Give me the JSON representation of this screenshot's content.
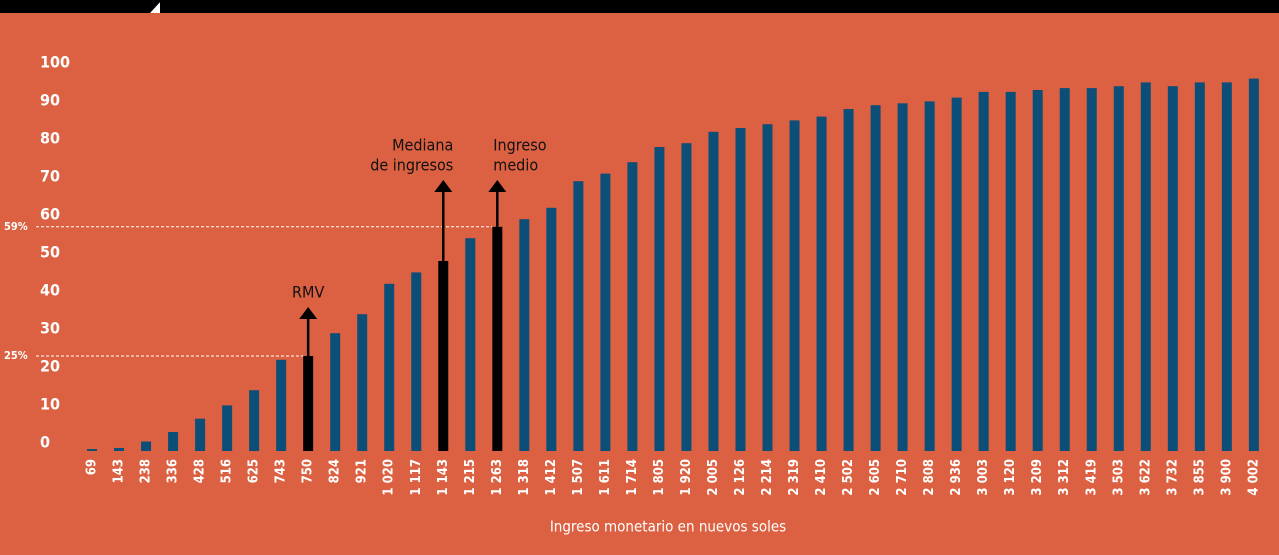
{
  "chart_data": {
    "type": "bar",
    "x_label": "Ingreso monetario en nuevos soles",
    "categories": [
      "69",
      "143",
      "238",
      "336",
      "428",
      "516",
      "625",
      "743",
      "750",
      "824",
      "921",
      "1 020",
      "1 117",
      "1 143",
      "1 215",
      "1 263",
      "1 318",
      "1 412",
      "1 507",
      "1 611",
      "1 714",
      "1 805",
      "1 920",
      "2 005",
      "2 126",
      "2 214",
      "2 319",
      "2 410",
      "2 502",
      "2 605",
      "2 710",
      "2 808",
      "2 936",
      "3 003",
      "3 120",
      "3 209",
      "3 312",
      "3 419",
      "3 503",
      "3 622",
      "3 732",
      "3 855",
      "3 900",
      "4 002"
    ],
    "values": [
      0.5,
      0.8,
      2.5,
      5,
      8.5,
      12,
      16,
      24,
      25,
      31,
      36,
      44,
      47,
      50,
      56,
      59,
      61,
      64,
      71,
      73,
      76,
      80,
      81,
      84,
      85,
      86,
      87,
      88,
      90,
      91,
      91.5,
      92,
      93,
      94.5,
      94.5,
      95,
      95.5,
      95.5,
      96,
      97,
      96,
      97,
      97,
      98
    ],
    "color": "#0b4f78",
    "highlight_color": "#000000",
    "ylim": [
      0,
      100
    ],
    "yticks": [
      0,
      10,
      20,
      30,
      40,
      50,
      60,
      70,
      80,
      90,
      100
    ],
    "reference_lines": [
      {
        "value": 25,
        "label": "25%"
      },
      {
        "value": 59,
        "label": "59%"
      }
    ],
    "annotations": [
      {
        "category_index": 8,
        "lines": [
          "RMV"
        ]
      },
      {
        "category_index": 13,
        "lines": [
          "Mediana",
          "de ingresos"
        ]
      },
      {
        "category_index": 15,
        "lines": [
          "Ingreso",
          "medio"
        ]
      }
    ]
  }
}
